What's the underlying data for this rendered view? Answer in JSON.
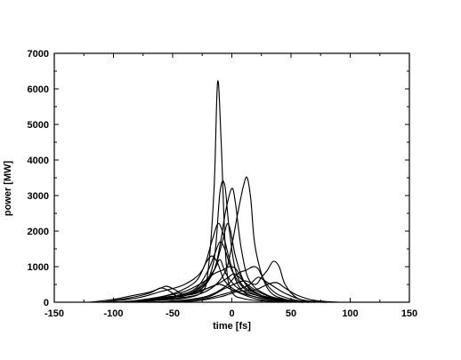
{
  "chart_data": {
    "type": "line",
    "title": "",
    "xlabel": "time [fs]",
    "ylabel": "power [MW]",
    "xlim": [
      -150,
      150
    ],
    "ylim": [
      0,
      7000
    ],
    "x_ticks": [
      -150,
      -100,
      -50,
      0,
      50,
      100,
      150
    ],
    "y_ticks": [
      0,
      1000,
      2000,
      3000,
      4000,
      5000,
      6000,
      7000
    ],
    "grid": false,
    "legend": "none",
    "line_color": "#000000",
    "series": [
      {
        "x": [
          -100,
          -80,
          -60,
          -40,
          -25,
          -20,
          -15,
          -12,
          -9,
          -5,
          0,
          10,
          25,
          50,
          80
        ],
        "values": [
          0,
          20,
          60,
          110,
          300,
          900,
          3200,
          6200,
          4500,
          1200,
          300,
          100,
          40,
          10,
          0
        ]
      },
      {
        "x": [
          -100,
          -75,
          -55,
          -40,
          -25,
          -15,
          -10,
          -6,
          -2,
          5,
          20,
          45,
          70
        ],
        "values": [
          0,
          50,
          150,
          200,
          400,
          1200,
          3100,
          3300,
          2000,
          700,
          250,
          60,
          0
        ]
      },
      {
        "x": [
          -90,
          -60,
          -40,
          -25,
          -15,
          -10,
          -5,
          0,
          3,
          8,
          15,
          30,
          50,
          70
        ],
        "values": [
          0,
          80,
          200,
          450,
          900,
          1600,
          2600,
          3200,
          2800,
          1500,
          600,
          200,
          50,
          0
        ]
      },
      {
        "x": [
          -80,
          -50,
          -30,
          -15,
          -5,
          0,
          5,
          10,
          13,
          16,
          20,
          30,
          45,
          65
        ],
        "values": [
          0,
          100,
          200,
          450,
          900,
          1600,
          2500,
          3300,
          3500,
          2900,
          1500,
          400,
          80,
          0
        ]
      },
      {
        "x": [
          -110,
          -80,
          -60,
          -40,
          -25,
          -17,
          -12,
          -8,
          -2,
          5,
          15,
          35,
          60
        ],
        "values": [
          0,
          120,
          300,
          500,
          900,
          1700,
          2200,
          2000,
          1200,
          500,
          200,
          60,
          0
        ]
      },
      {
        "x": [
          -90,
          -60,
          -40,
          -25,
          -15,
          -8,
          -4,
          -1,
          3,
          10,
          20,
          40,
          60
        ],
        "values": [
          0,
          90,
          200,
          400,
          900,
          1700,
          2200,
          2000,
          1300,
          600,
          250,
          80,
          0
        ]
      },
      {
        "x": [
          -90,
          -65,
          -45,
          -30,
          -20,
          -14,
          -10,
          -6,
          0,
          10,
          25,
          45,
          65
        ],
        "values": [
          0,
          80,
          200,
          400,
          900,
          1400,
          1700,
          1500,
          900,
          400,
          150,
          40,
          0
        ]
      },
      {
        "x": [
          -110,
          -90,
          -70,
          -60,
          -52,
          -45,
          -35,
          -25,
          -15,
          -10,
          -5,
          5,
          20,
          40,
          60
        ],
        "values": [
          0,
          100,
          250,
          400,
          300,
          150,
          250,
          500,
          900,
          1200,
          800,
          400,
          200,
          60,
          0
        ]
      },
      {
        "x": [
          -100,
          -75,
          -60,
          -45,
          -30,
          -22,
          -17,
          -12,
          -6,
          5,
          20,
          40,
          60
        ],
        "values": [
          0,
          60,
          150,
          300,
          600,
          1100,
          1300,
          1100,
          600,
          300,
          150,
          40,
          0
        ]
      },
      {
        "x": [
          -70,
          -40,
          -20,
          -5,
          10,
          20,
          25,
          30,
          35,
          40,
          45,
          55,
          70
        ],
        "values": [
          0,
          50,
          150,
          400,
          600,
          500,
          700,
          900,
          1150,
          1000,
          500,
          120,
          0
        ]
      },
      {
        "x": [
          -70,
          -40,
          -20,
          -5,
          5,
          12,
          18,
          22,
          26,
          32,
          40,
          55,
          70
        ],
        "values": [
          0,
          60,
          180,
          450,
          800,
          900,
          1000,
          950,
          700,
          400,
          200,
          50,
          0
        ]
      },
      {
        "x": [
          -90,
          -60,
          -40,
          -25,
          -15,
          -8,
          -2,
          3,
          8,
          15,
          30,
          50
        ],
        "values": [
          0,
          150,
          300,
          550,
          800,
          900,
          1000,
          950,
          700,
          400,
          120,
          0
        ]
      },
      {
        "x": [
          -80,
          -55,
          -35,
          -20,
          -10,
          -3,
          2,
          8,
          15,
          25,
          40,
          60
        ],
        "values": [
          0,
          120,
          250,
          400,
          550,
          700,
          800,
          650,
          450,
          250,
          80,
          0
        ]
      },
      {
        "x": [
          -120,
          -100,
          -85,
          -70,
          -60,
          -55,
          -48,
          -40,
          -30,
          -20,
          -10,
          0,
          20,
          45
        ],
        "values": [
          0,
          80,
          180,
          280,
          400,
          450,
          350,
          200,
          250,
          400,
          500,
          350,
          100,
          0
        ]
      },
      {
        "x": [
          -60,
          -30,
          -10,
          5,
          15,
          22,
          28,
          35,
          45,
          60,
          80
        ],
        "values": [
          0,
          50,
          200,
          350,
          500,
          700,
          600,
          450,
          250,
          60,
          0
        ]
      },
      {
        "x": [
          -60,
          -30,
          -10,
          5,
          20,
          30,
          38,
          45,
          55,
          70,
          90
        ],
        "values": [
          0,
          40,
          150,
          300,
          350,
          500,
          550,
          400,
          200,
          50,
          0
        ]
      }
    ]
  }
}
